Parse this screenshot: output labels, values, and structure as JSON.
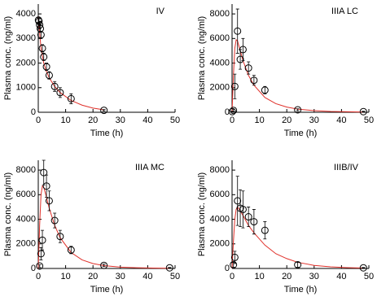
{
  "chart_data": [
    {
      "type": "scatter",
      "title": "IV",
      "xlabel": "Time (h)",
      "ylabel": "Plasma conc. (ng/ml)",
      "xlim": [
        0,
        50
      ],
      "xticks": [
        0,
        10,
        20,
        30,
        40,
        50
      ],
      "ylim": [
        0,
        4400
      ],
      "yticks": [
        0,
        1000,
        2000,
        3000,
        4000
      ],
      "marker_color": "#000000",
      "fit_color": "#e0302a",
      "x": [
        0.08,
        0.25,
        0.5,
        0.75,
        1,
        1.5,
        2,
        3,
        4,
        6,
        8,
        12,
        24
      ],
      "values": [
        3750,
        3700,
        3550,
        3400,
        3150,
        2600,
        2250,
        1850,
        1500,
        1050,
        800,
        550,
        80
      ],
      "errors": [
        100,
        100,
        150,
        150,
        150,
        150,
        150,
        150,
        150,
        200,
        200,
        200,
        30
      ],
      "fit_x": [
        0,
        1,
        2,
        3,
        4,
        6,
        8,
        12,
        16,
        20,
        24
      ],
      "fit_values": [
        3900,
        2600,
        2000,
        1650,
        1400,
        1050,
        800,
        480,
        290,
        170,
        100
      ]
    },
    {
      "type": "scatter",
      "title": "IIIA LC",
      "xlabel": "Time (h)",
      "ylabel": "Plasma conc. (ng/ml)",
      "xlim": [
        0,
        50
      ],
      "xticks": [
        0,
        10,
        20,
        30,
        40,
        50
      ],
      "ylim": [
        0,
        8800
      ],
      "yticks": [
        0,
        2000,
        4000,
        6000,
        8000
      ],
      "marker_color": "#000000",
      "fit_color": "#e0302a",
      "x": [
        0.08,
        0.5,
        1,
        2,
        3,
        4,
        6,
        8,
        12,
        24,
        48
      ],
      "values": [
        50,
        150,
        2100,
        6600,
        4300,
        5100,
        3600,
        2600,
        1800,
        200,
        50
      ],
      "errors": [
        30,
        100,
        1000,
        1800,
        800,
        900,
        500,
        400,
        300,
        80,
        30
      ],
      "fit_x": [
        0,
        0.5,
        1,
        1.5,
        2,
        3,
        4,
        6,
        8,
        12,
        16,
        20,
        24,
        30,
        36,
        42,
        48
      ],
      "fit_values": [
        0,
        3000,
        5200,
        5900,
        5800,
        5000,
        4200,
        3000,
        2200,
        1200,
        700,
        420,
        260,
        130,
        70,
        40,
        20
      ]
    },
    {
      "type": "scatter",
      "title": "IIIA MC",
      "xlabel": "Time (h)",
      "ylabel": "Plasma conc. (ng/ml)",
      "xlim": [
        0,
        50
      ],
      "xticks": [
        0,
        10,
        20,
        30,
        40,
        50
      ],
      "ylim": [
        0,
        8800
      ],
      "yticks": [
        0,
        2000,
        4000,
        6000,
        8000
      ],
      "marker_color": "#000000",
      "fit_color": "#e0302a",
      "x": [
        0.5,
        1,
        1.5,
        2,
        3,
        4,
        6,
        8,
        12,
        24,
        48
      ],
      "values": [
        200,
        1200,
        2300,
        7800,
        6700,
        5500,
        3900,
        2600,
        1500,
        250,
        50
      ],
      "errors": [
        100,
        500,
        800,
        1000,
        900,
        800,
        600,
        500,
        300,
        100,
        30
      ],
      "fit_x": [
        0,
        0.5,
        1,
        1.5,
        2,
        3,
        4,
        6,
        8,
        12,
        16,
        20,
        24,
        30,
        36,
        42,
        48
      ],
      "fit_values": [
        0,
        3500,
        6000,
        6700,
        6600,
        5800,
        4900,
        3500,
        2500,
        1300,
        700,
        400,
        230,
        110,
        60,
        30,
        15
      ]
    },
    {
      "type": "scatter",
      "title": "IIIB/IV",
      "xlabel": "Time (h)",
      "ylabel": "Plasma conc. (ng/ml)",
      "xlim": [
        0,
        50
      ],
      "xticks": [
        0,
        10,
        20,
        30,
        40,
        50
      ],
      "ylim": [
        0,
        8800
      ],
      "yticks": [
        0,
        2000,
        4000,
        6000,
        8000
      ],
      "marker_color": "#000000",
      "fit_color": "#e0302a",
      "x": [
        0.5,
        1,
        2,
        3,
        4,
        6,
        8,
        12,
        24,
        48
      ],
      "values": [
        300,
        900,
        5500,
        4900,
        4800,
        4200,
        3800,
        3100,
        300,
        50
      ],
      "errors": [
        200,
        500,
        2000,
        1500,
        1500,
        800,
        1000,
        700,
        200,
        30
      ],
      "fit_x": [
        0,
        0.5,
        1,
        1.5,
        2,
        3,
        4,
        6,
        8,
        12,
        16,
        20,
        24,
        30,
        36,
        42,
        48
      ],
      "fit_values": [
        0,
        2200,
        4000,
        4800,
        5000,
        4700,
        4300,
        3500,
        2900,
        1900,
        1200,
        800,
        500,
        250,
        130,
        70,
        35
      ]
    }
  ]
}
